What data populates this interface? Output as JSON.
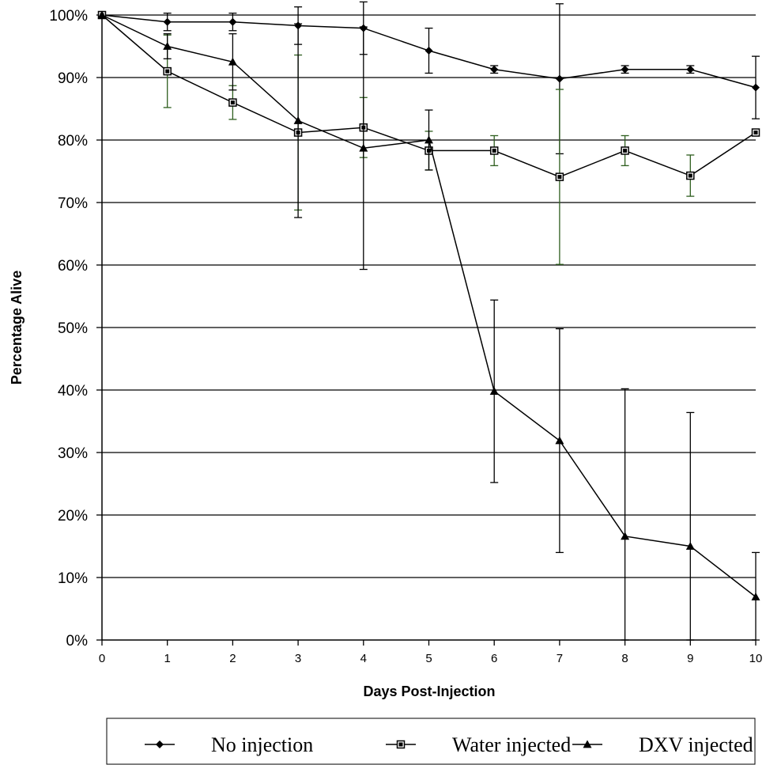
{
  "chart_data": {
    "type": "line",
    "xlabel": "Days Post-Injection",
    "ylabel": "Percentage Alive",
    "x": [
      0,
      1,
      2,
      3,
      4,
      5,
      6,
      7,
      8,
      9,
      10
    ],
    "xlim": [
      0,
      10
    ],
    "ylim": [
      0,
      100
    ],
    "y_tick_labels": [
      "0%",
      "10%",
      "20%",
      "30%",
      "40%",
      "50%",
      "60%",
      "70%",
      "80%",
      "90%",
      "100%"
    ],
    "x_tick_labels": [
      "0",
      "1",
      "2",
      "3",
      "4",
      "5",
      "6",
      "7",
      "8",
      "9",
      "10"
    ],
    "grid": "horizontal",
    "legend_position": "bottom",
    "series": [
      {
        "name": "No injection",
        "marker": "diamond",
        "color": "#000000",
        "values": [
          100,
          98.9,
          98.9,
          98.3,
          97.9,
          94.3,
          91.3,
          89.8,
          91.3,
          91.3,
          88.4
        ],
        "error": [
          0,
          1.4,
          1.4,
          3.0,
          4.2,
          3.6,
          0.6,
          12.0,
          0.6,
          0.6,
          5.0
        ]
      },
      {
        "name": "Water injected",
        "marker": "square",
        "color": "#000000",
        "error_color": "#2e5e1e",
        "values": [
          100,
          91.0,
          86.0,
          81.2,
          82.0,
          78.3,
          78.3,
          74.1,
          78.3,
          74.3,
          81.2
        ],
        "error": [
          0,
          5.8,
          2.7,
          12.4,
          4.8,
          3.1,
          2.4,
          14.0,
          2.4,
          3.3,
          0
        ]
      },
      {
        "name": "DXV injected",
        "marker": "triangle",
        "color": "#000000",
        "values": [
          100,
          95.0,
          92.5,
          83.1,
          78.7,
          80.0,
          39.8,
          31.9,
          16.6,
          15.0,
          6.9
        ],
        "error": [
          0,
          2.0,
          4.5,
          15.5,
          19.4,
          4.8,
          14.6,
          17.9,
          23.6,
          21.4,
          7.1
        ]
      }
    ]
  }
}
